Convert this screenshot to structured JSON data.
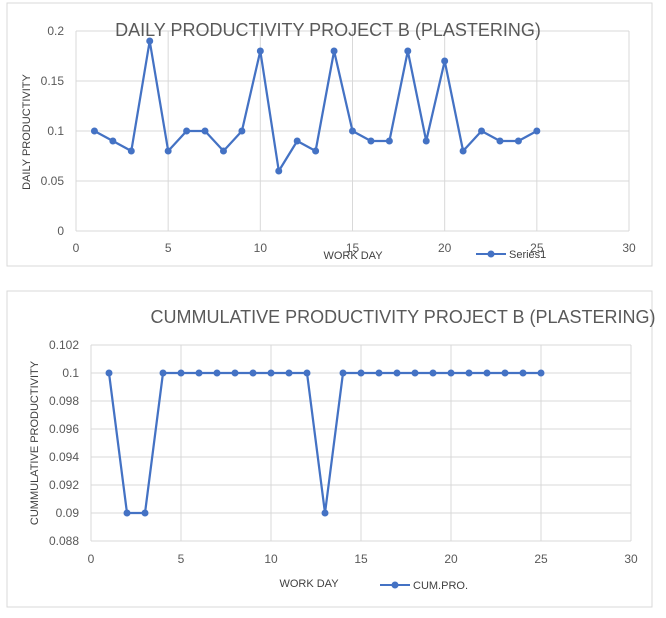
{
  "chart_data": [
    {
      "type": "line",
      "title": "DAILY PRODUCTIVITY PROJECT B (PLASTERING)",
      "xlabel": "WORK DAY",
      "ylabel": "DAILY PRODUCTIVITY",
      "xlim": [
        0,
        30
      ],
      "ylim": [
        0,
        0.2
      ],
      "x_ticks": [
        "0",
        "5",
        "10",
        "15",
        "20",
        "25",
        "30"
      ],
      "y_ticks": [
        "0",
        "0.05",
        "0.1",
        "0.15",
        "0.2"
      ],
      "grid": true,
      "legend_position": "bottom-right",
      "color": "#4472c4",
      "series": [
        {
          "name": "Series1",
          "x": [
            1,
            2,
            3,
            4,
            5,
            6,
            7,
            8,
            9,
            10,
            11,
            12,
            13,
            14,
            15,
            16,
            17,
            18,
            19,
            20,
            21,
            22,
            23,
            24,
            25
          ],
          "values": [
            0.1,
            0.09,
            0.08,
            0.19,
            0.08,
            0.1,
            0.1,
            0.08,
            0.1,
            0.18,
            0.06,
            0.09,
            0.08,
            0.18,
            0.1,
            0.09,
            0.09,
            0.18,
            0.09,
            0.17,
            0.08,
            0.1,
            0.09,
            0.09,
            0.1
          ]
        }
      ]
    },
    {
      "type": "line",
      "title": "CUMMULATIVE PRODUCTIVITY PROJECT B (PLASTERING)",
      "xlabel": "WORK DAY",
      "ylabel": "CUMMULATIVE PRODUCTIVITY",
      "xlim": [
        0,
        30
      ],
      "ylim": [
        0.088,
        0.102
      ],
      "x_ticks": [
        "0",
        "5",
        "10",
        "15",
        "20",
        "25",
        "30"
      ],
      "y_ticks": [
        "0.088",
        "0.09",
        "0.092",
        "0.094",
        "0.096",
        "0.098",
        "0.1",
        "0.102"
      ],
      "grid": true,
      "legend_position": "bottom",
      "color": "#4472c4",
      "series": [
        {
          "name": "CUM.PRO.",
          "x": [
            1,
            2,
            3,
            4,
            5,
            6,
            7,
            8,
            9,
            10,
            11,
            12,
            13,
            14,
            15,
            16,
            17,
            18,
            19,
            20,
            21,
            22,
            23,
            24,
            25
          ],
          "values": [
            0.1,
            0.09,
            0.09,
            0.1,
            0.1,
            0.1,
            0.1,
            0.1,
            0.1,
            0.1,
            0.1,
            0.1,
            0.09,
            0.1,
            0.1,
            0.1,
            0.1,
            0.1,
            0.1,
            0.1,
            0.1,
            0.1,
            0.1,
            0.1,
            0.1
          ]
        }
      ]
    }
  ]
}
